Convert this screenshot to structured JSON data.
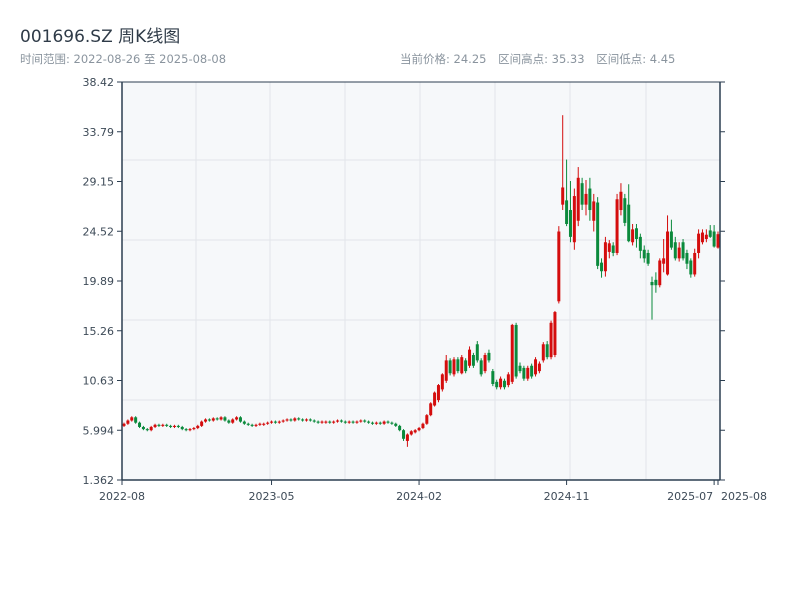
{
  "header": {
    "title": "001696.SZ 周K线图",
    "range_label": "时间范围: 2022-08-26 至 2025-08-08",
    "current_price": "当前价格: 24.25",
    "range_high": "区间高点: 35.33",
    "range_low": "区间低点: 4.45"
  },
  "colors": {
    "up": "#d40d0d",
    "down": "#0b8a3c",
    "plot_bg": "#f6f8fa",
    "axis": "#2c3e50",
    "grid": "#e2e5ea"
  },
  "chart_data": {
    "type": "candlestick",
    "title": "001696.SZ 周K线图",
    "ylim": [
      1.362,
      38.42
    ],
    "y_ticks": [
      "38.42",
      "33.79",
      "29.15",
      "24.52",
      "19.89",
      "15.26",
      "10.63",
      "5.994",
      "1.362"
    ],
    "x_ticks": [
      {
        "label": "2022-08",
        "index": 0
      },
      {
        "label": "2023-05",
        "index": 38
      },
      {
        "label": "2024-02",
        "index": 76
      },
      {
        "label": "2024-11",
        "index": 114
      },
      {
        "label": "2025-07",
        "index": 152
      },
      {
        "label": "2025-08",
        "index": 153
      }
    ],
    "grid": true,
    "ohlc_fields": [
      "open",
      "high",
      "low",
      "close"
    ],
    "candles": [
      [
        6.4,
        6.7,
        6.3,
        6.6
      ],
      [
        6.6,
        7.0,
        6.5,
        6.9
      ],
      [
        6.9,
        7.3,
        6.8,
        7.2
      ],
      [
        7.2,
        7.3,
        6.6,
        6.7
      ],
      [
        6.7,
        6.8,
        6.2,
        6.3
      ],
      [
        6.3,
        6.4,
        6.0,
        6.1
      ],
      [
        6.1,
        6.2,
        5.9,
        6.0
      ],
      [
        6.0,
        6.4,
        5.9,
        6.3
      ],
      [
        6.3,
        6.6,
        6.2,
        6.5
      ],
      [
        6.5,
        6.6,
        6.3,
        6.4
      ],
      [
        6.4,
        6.6,
        6.3,
        6.5
      ],
      [
        6.5,
        6.6,
        6.3,
        6.4
      ],
      [
        6.4,
        6.5,
        6.2,
        6.3
      ],
      [
        6.3,
        6.5,
        6.2,
        6.4
      ],
      [
        6.4,
        6.5,
        6.2,
        6.3
      ],
      [
        6.3,
        6.4,
        6.0,
        6.1
      ],
      [
        6.1,
        6.2,
        5.9,
        6.0
      ],
      [
        6.0,
        6.2,
        5.9,
        6.1
      ],
      [
        6.1,
        6.3,
        6.0,
        6.2
      ],
      [
        6.2,
        6.5,
        6.1,
        6.4
      ],
      [
        6.4,
        6.9,
        6.3,
        6.8
      ],
      [
        6.8,
        7.1,
        6.7,
        7.0
      ],
      [
        7.0,
        7.1,
        6.8,
        6.9
      ],
      [
        6.9,
        7.2,
        6.8,
        7.1
      ],
      [
        7.1,
        7.2,
        6.9,
        7.0
      ],
      [
        7.0,
        7.3,
        6.9,
        7.2
      ],
      [
        7.2,
        7.3,
        6.8,
        6.9
      ],
      [
        6.9,
        7.0,
        6.6,
        6.7
      ],
      [
        6.7,
        7.1,
        6.6,
        7.0
      ],
      [
        7.0,
        7.3,
        6.9,
        7.2
      ],
      [
        7.2,
        7.3,
        6.7,
        6.8
      ],
      [
        6.8,
        6.9,
        6.5,
        6.6
      ],
      [
        6.6,
        6.7,
        6.4,
        6.5
      ],
      [
        6.5,
        6.6,
        6.3,
        6.4
      ],
      [
        6.4,
        6.6,
        6.3,
        6.5
      ],
      [
        6.5,
        6.7,
        6.4,
        6.6
      ],
      [
        6.5,
        6.7,
        6.4,
        6.6
      ],
      [
        6.6,
        6.8,
        6.5,
        6.7
      ],
      [
        6.7,
        6.9,
        6.6,
        6.8
      ],
      [
        6.8,
        6.9,
        6.6,
        6.7
      ],
      [
        6.7,
        6.9,
        6.6,
        6.8
      ],
      [
        6.8,
        7.0,
        6.7,
        6.9
      ],
      [
        6.9,
        7.1,
        6.8,
        7.0
      ],
      [
        7.0,
        7.1,
        6.8,
        6.9
      ],
      [
        6.9,
        7.2,
        6.8,
        7.1
      ],
      [
        7.1,
        7.2,
        6.9,
        7.0
      ],
      [
        7.0,
        7.1,
        6.8,
        6.9
      ],
      [
        6.9,
        7.1,
        6.8,
        7.0
      ],
      [
        7.0,
        7.1,
        6.8,
        6.9
      ],
      [
        6.9,
        7.0,
        6.7,
        6.8
      ],
      [
        6.8,
        6.9,
        6.6,
        6.7
      ],
      [
        6.7,
        6.9,
        6.6,
        6.8
      ],
      [
        6.7,
        6.9,
        6.6,
        6.8
      ],
      [
        6.8,
        6.9,
        6.6,
        6.7
      ],
      [
        6.7,
        6.9,
        6.6,
        6.8
      ],
      [
        6.8,
        7.0,
        6.7,
        6.9
      ],
      [
        6.9,
        7.0,
        6.7,
        6.8
      ],
      [
        6.8,
        6.9,
        6.6,
        6.7
      ],
      [
        6.7,
        6.9,
        6.6,
        6.8
      ],
      [
        6.8,
        6.9,
        6.6,
        6.7
      ],
      [
        6.7,
        6.9,
        6.6,
        6.8
      ],
      [
        6.8,
        7.0,
        6.7,
        6.9
      ],
      [
        6.9,
        7.0,
        6.7,
        6.8
      ],
      [
        6.8,
        6.9,
        6.6,
        6.7
      ],
      [
        6.7,
        6.8,
        6.5,
        6.6
      ],
      [
        6.6,
        6.8,
        6.5,
        6.7
      ],
      [
        6.7,
        6.8,
        6.5,
        6.6
      ],
      [
        6.6,
        6.9,
        6.5,
        6.8
      ],
      [
        6.8,
        6.9,
        6.6,
        6.7
      ],
      [
        6.7,
        6.8,
        6.5,
        6.6
      ],
      [
        6.6,
        6.7,
        6.3,
        6.4
      ],
      [
        6.4,
        6.5,
        5.9,
        6.0
      ],
      [
        6.0,
        6.1,
        5.0,
        5.2
      ],
      [
        5.0,
        5.7,
        4.45,
        5.6
      ],
      [
        5.6,
        6.0,
        5.5,
        5.9
      ],
      [
        5.8,
        6.1,
        5.7,
        6.0
      ],
      [
        6.0,
        6.3,
        5.9,
        6.2
      ],
      [
        6.2,
        6.7,
        6.1,
        6.6
      ],
      [
        6.6,
        7.5,
        6.5,
        7.4
      ],
      [
        7.4,
        8.6,
        7.3,
        8.5
      ],
      [
        8.3,
        9.6,
        8.2,
        9.5
      ],
      [
        8.8,
        10.3,
        8.6,
        10.2
      ],
      [
        9.8,
        11.3,
        9.6,
        11.2
      ],
      [
        10.6,
        13.0,
        10.4,
        12.5
      ],
      [
        12.5,
        12.7,
        11.1,
        11.3
      ],
      [
        11.2,
        12.8,
        11.0,
        12.6
      ],
      [
        12.6,
        12.8,
        11.3,
        11.5
      ],
      [
        11.3,
        13.0,
        11.2,
        12.8
      ],
      [
        12.5,
        12.7,
        11.3,
        11.5
      ],
      [
        12.0,
        13.8,
        11.8,
        13.5
      ],
      [
        13.0,
        13.2,
        11.8,
        12.0
      ],
      [
        14.0,
        14.3,
        12.3,
        12.5
      ],
      [
        12.5,
        12.7,
        11.0,
        11.2
      ],
      [
        11.5,
        13.2,
        11.3,
        13.0
      ],
      [
        13.2,
        13.5,
        12.3,
        12.5
      ],
      [
        11.5,
        11.7,
        10.1,
        10.3
      ],
      [
        10.5,
        10.7,
        9.8,
        10.0
      ],
      [
        10.0,
        11.0,
        9.8,
        10.8
      ],
      [
        10.6,
        10.8,
        9.8,
        10.0
      ],
      [
        10.2,
        11.4,
        10.0,
        11.2
      ],
      [
        10.5,
        15.9,
        10.3,
        15.8
      ],
      [
        15.8,
        16.0,
        10.8,
        11.0
      ],
      [
        12.0,
        12.3,
        11.3,
        11.5
      ],
      [
        11.8,
        12.0,
        10.6,
        10.8
      ],
      [
        10.8,
        12.0,
        10.6,
        11.8
      ],
      [
        12.0,
        12.2,
        10.8,
        11.0
      ],
      [
        11.2,
        12.8,
        11.0,
        12.6
      ],
      [
        11.5,
        12.4,
        11.3,
        12.2
      ],
      [
        12.5,
        14.2,
        12.3,
        14.0
      ],
      [
        14.0,
        14.3,
        12.6,
        12.8
      ],
      [
        12.8,
        16.2,
        12.6,
        16.0
      ],
      [
        13.0,
        17.1,
        12.8,
        17.0
      ],
      [
        18.0,
        25.0,
        17.8,
        24.5
      ],
      [
        27.0,
        35.33,
        26.5,
        28.6
      ],
      [
        27.4,
        31.2,
        25.0,
        25.2
      ],
      [
        26.5,
        29.2,
        23.5,
        24.0
      ],
      [
        23.5,
        28.5,
        22.8,
        27.8
      ],
      [
        25.5,
        30.5,
        25.0,
        29.5
      ],
      [
        29.0,
        29.5,
        26.5,
        27.0
      ],
      [
        27.0,
        29.3,
        26.0,
        28.0
      ],
      [
        28.5,
        29.5,
        25.5,
        26.5
      ],
      [
        25.5,
        28.0,
        24.5,
        27.3
      ],
      [
        27.2,
        27.7,
        21.0,
        21.3
      ],
      [
        21.6,
        22.0,
        20.2,
        20.8
      ],
      [
        20.8,
        24.0,
        20.3,
        23.5
      ],
      [
        22.6,
        23.7,
        22.0,
        23.4
      ],
      [
        23.2,
        23.5,
        22.2,
        22.5
      ],
      [
        22.5,
        28.0,
        22.3,
        27.5
      ],
      [
        26.5,
        29.0,
        26.0,
        28.2
      ],
      [
        27.6,
        28.0,
        25.0,
        25.3
      ],
      [
        27.0,
        28.9,
        23.5,
        23.6
      ],
      [
        23.5,
        25.2,
        23.2,
        24.7
      ],
      [
        24.8,
        25.2,
        23.0,
        23.8
      ],
      [
        24.0,
        24.3,
        22.0,
        22.7
      ],
      [
        22.8,
        23.2,
        21.6,
        22.0
      ],
      [
        22.5,
        22.8,
        21.3,
        21.5
      ],
      [
        19.8,
        20.3,
        16.3,
        19.5
      ],
      [
        20.0,
        20.7,
        18.8,
        19.5
      ],
      [
        19.5,
        22.0,
        19.3,
        21.8
      ],
      [
        21.5,
        23.8,
        20.7,
        22.0
      ],
      [
        20.5,
        26.0,
        20.4,
        24.5
      ],
      [
        24.5,
        25.6,
        22.8,
        23.0
      ],
      [
        23.5,
        24.0,
        21.8,
        22.0
      ],
      [
        22.0,
        23.5,
        21.7,
        23.0
      ],
      [
        23.5,
        23.8,
        21.8,
        22.0
      ],
      [
        22.5,
        22.8,
        21.0,
        21.5
      ],
      [
        21.8,
        22.0,
        20.2,
        20.5
      ],
      [
        20.5,
        22.9,
        20.3,
        22.5
      ],
      [
        22.5,
        24.7,
        22.0,
        24.3
      ],
      [
        23.5,
        24.7,
        23.3,
        24.4
      ],
      [
        23.8,
        24.7,
        23.5,
        24.2
      ],
      [
        24.6,
        25.1,
        23.9,
        24.0
      ],
      [
        24.5,
        25.1,
        23.0,
        23.1
      ],
      [
        23.0,
        24.5,
        22.9,
        24.25
      ]
    ]
  }
}
